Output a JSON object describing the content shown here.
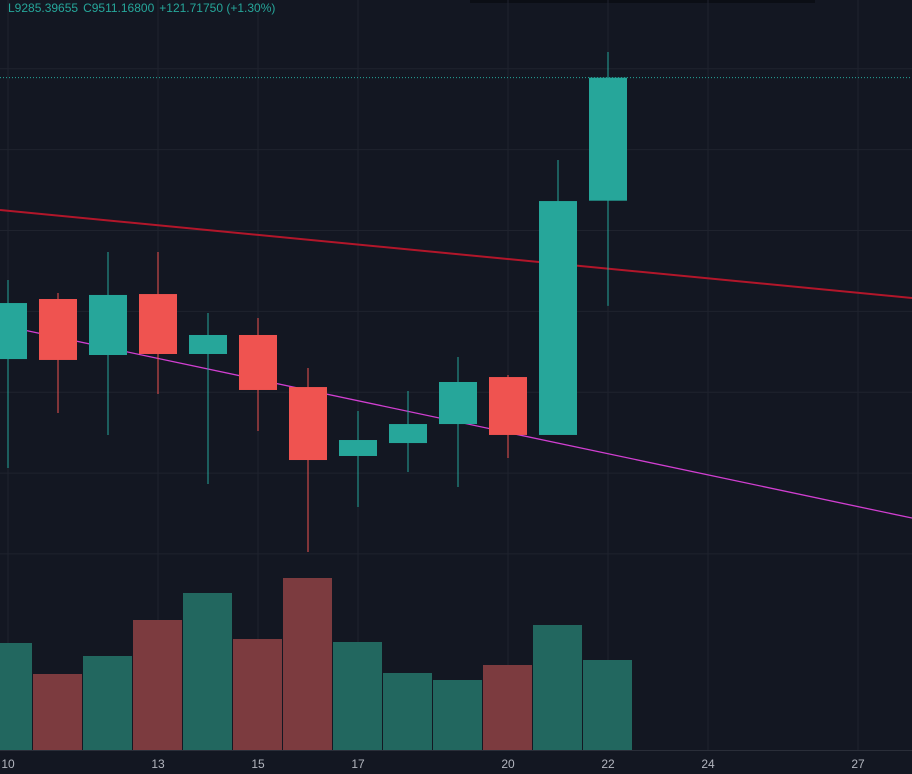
{
  "chart_data": {
    "type": "candlestick",
    "header": [
      "L9285.39655",
      "C9511.16800",
      "+121.71750 (+1.30%)"
    ],
    "x": [
      10,
      11,
      12,
      13,
      14,
      15,
      16,
      17,
      18,
      19,
      20,
      21,
      22
    ],
    "open": [
      9232.8,
      9292.2,
      9236.8,
      9297.1,
      9237.8,
      9256.6,
      9205.1,
      9136.9,
      9149.7,
      9168.5,
      9215.0,
      9157.7,
      9389.45
    ],
    "high": [
      9311.0,
      9298.1,
      9338.7,
      9338.7,
      9278.3,
      9273.4,
      9223.9,
      9181.4,
      9201.2,
      9234.8,
      9217.0,
      9429.7,
      9536.6
    ],
    "low": [
      9125.0,
      9179.4,
      9157.7,
      9198.2,
      9109.2,
      9161.6,
      9041.9,
      9086.4,
      9121.0,
      9106.2,
      9134.9,
      9157.7,
      9285.39655
    ],
    "close": [
      9288.2,
      9231.9,
      9296.2,
      9237.8,
      9256.6,
      9202.2,
      9132.9,
      9152.7,
      9168.5,
      9210.1,
      9157.7,
      9389.1,
      9511.168
    ],
    "volume": [
      107,
      76,
      94,
      130,
      157,
      111,
      172,
      108,
      77,
      70,
      85,
      125,
      90
    ],
    "up_color": "#26a69a",
    "down_color": "#ef5350",
    "volume_up_color": "#22675f",
    "volume_down_color": "#7c3b3f",
    "xlim": [
      9.84,
      28.08
    ],
    "xticks": [
      10,
      13,
      15,
      17,
      20,
      22,
      24,
      27
    ],
    "ylim": [
      9034,
      9588
    ],
    "ygrid": [
      9520,
      9440,
      9360,
      9280,
      9200,
      9120,
      9040
    ],
    "volume_ylim": [
      0,
      200
    ],
    "grid": true,
    "trend_lines": [
      {
        "color": "#b2162a",
        "x": [
          9.84,
          28.08
        ],
        "values": [
          9380.2,
          9293.2
        ]
      },
      {
        "color": "#d13fd1",
        "x": [
          9.84,
          28.08
        ],
        "values": [
          9266.5,
          9075.5
        ]
      }
    ]
  }
}
